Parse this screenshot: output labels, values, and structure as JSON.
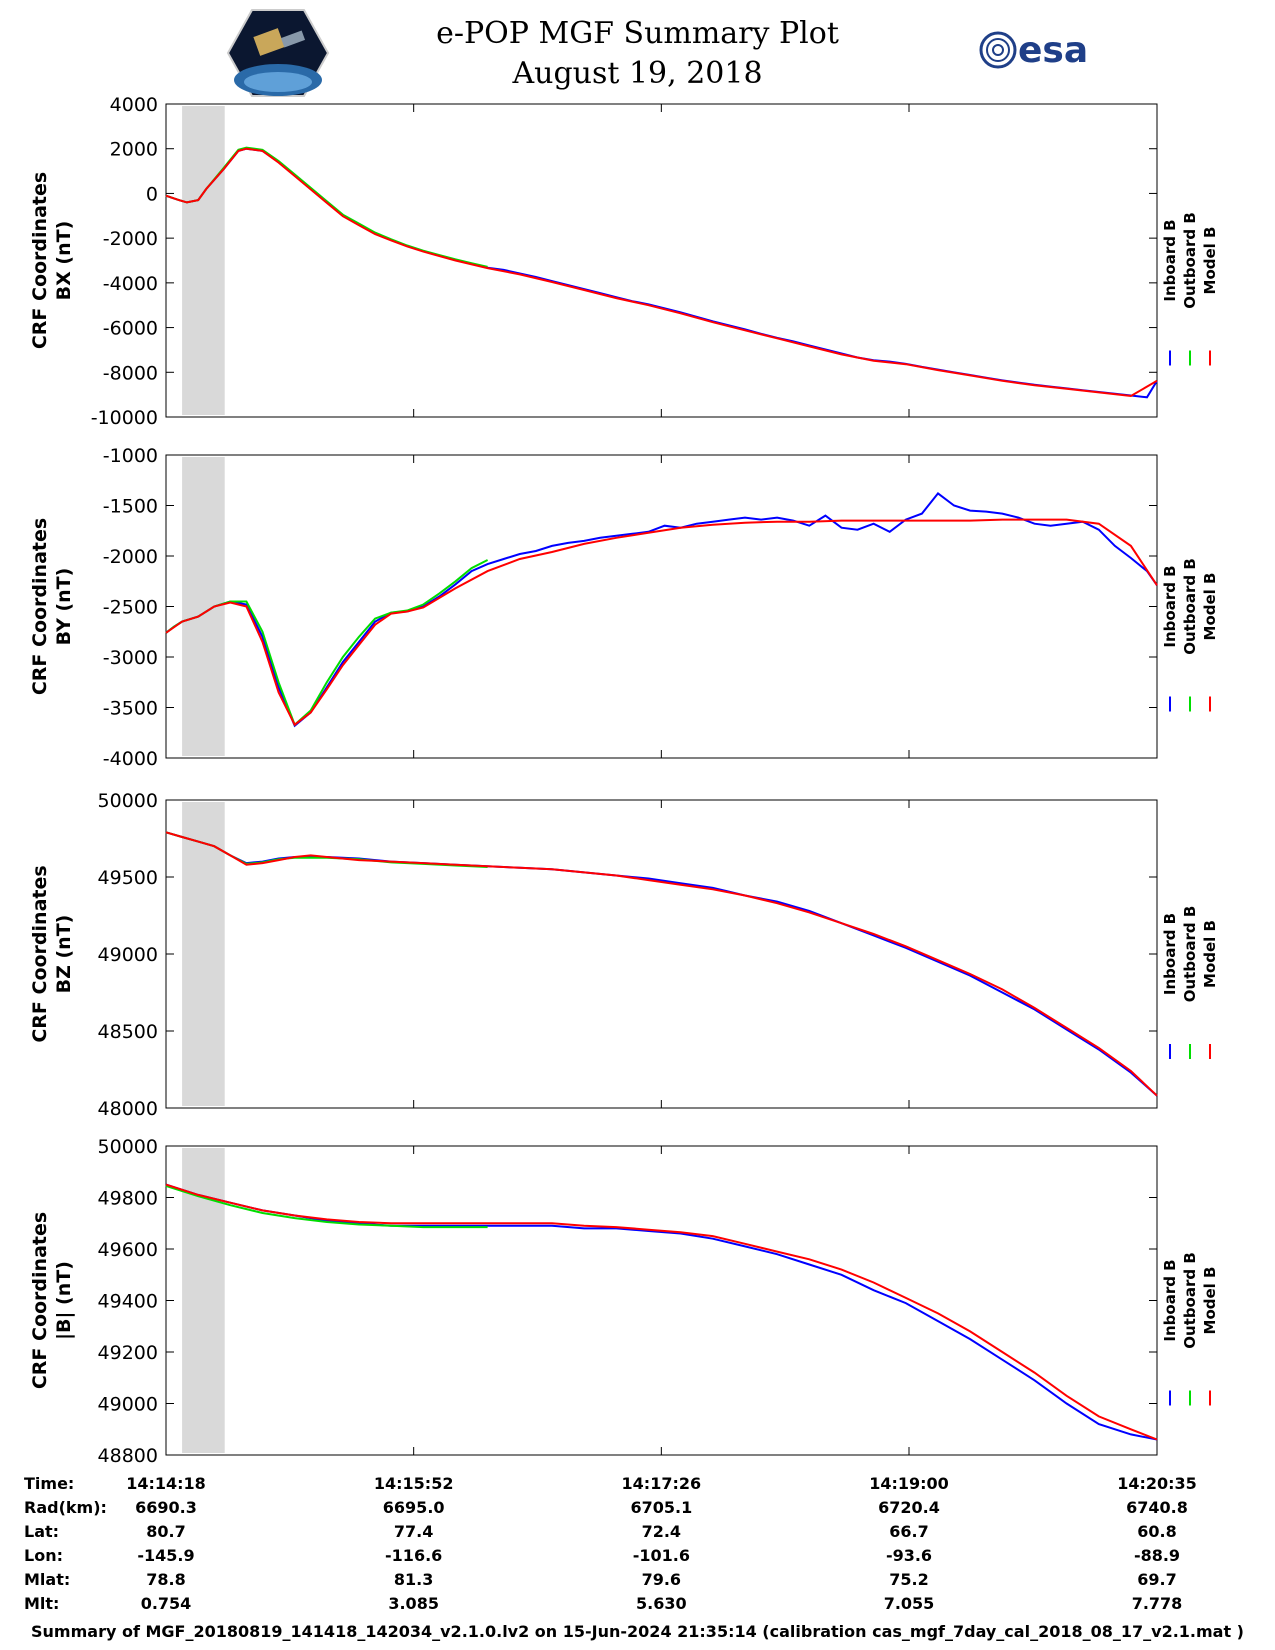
{
  "header": {
    "title": "e-POP MGF Summary Plot",
    "date": "August 19, 2018",
    "left_logo": "cassiope-satellite-logo",
    "right_logo_text": "esa"
  },
  "colors": {
    "inboard": "#0000ff",
    "outboard": "#00dd00",
    "model": "#ff0000",
    "shade": "#d9d9d9"
  },
  "legend": [
    "Inboard B",
    "Outboard B",
    "Model B"
  ],
  "chart_data": [
    {
      "type": "line",
      "ylabel_line1": "CRF Coordinates",
      "ylabel_line2": "BX (nT)",
      "ylim": [
        -10000,
        4000
      ],
      "yticks": [
        -10000,
        -8000,
        -6000,
        -4000,
        -2000,
        0,
        2000,
        4000
      ],
      "shaded_region_minutes": [
        1.0,
        3.65
      ],
      "series": [
        {
          "name": "Inboard B",
          "x": [
            0.0,
            0.4,
            0.8,
            1.3,
            2.0,
            2.5,
            3.6,
            4.5,
            5.0,
            6.0,
            7.0,
            8.0,
            9.0,
            10.0,
            11.0,
            12.0,
            12.5,
            13.0,
            13.5,
            14.0,
            15.0,
            16.0,
            17.0,
            18.0,
            19.0,
            20.0,
            21.0,
            22.0,
            23.0,
            24.0,
            25.0,
            26.0,
            27.0,
            28.0,
            29.0,
            30.0,
            31.0,
            32.0,
            33.0,
            34.0,
            35.0,
            36.0,
            37.0,
            38.0,
            39.0,
            40.0,
            41.0,
            42.0,
            43.0,
            44.0,
            45.0,
            46.0,
            47.0,
            48.0,
            49.0,
            50.0,
            51.0,
            52.0,
            53.0,
            54.0,
            55.0,
            56.0,
            57.0,
            58.0,
            59.0,
            60.0,
            61.0,
            61.62
          ],
          "y": [
            -100,
            -200,
            -300,
            -400,
            -300,
            200,
            1100,
            1900,
            2000,
            1900,
            1400,
            800,
            200,
            -400,
            -1000,
            -1400,
            -1600,
            -1800,
            -1950,
            -2080,
            -2350,
            -2580,
            -2780,
            -2980,
            -3150,
            -3320,
            -3420,
            -3580,
            -3740,
            -3920,
            -4100,
            -4280,
            -4460,
            -4640,
            -4820,
            -4960,
            -5140,
            -5320,
            -5520,
            -5720,
            -5900,
            -6080,
            -6280,
            -6460,
            -6620,
            -6800,
            -6980,
            -7160,
            -7340,
            -7460,
            -7520,
            -7620,
            -7760,
            -7880,
            -8000,
            -8120,
            -8240,
            -8360,
            -8460,
            -8560,
            -8640,
            -8720,
            -8800,
            -8880,
            -8960,
            -9040,
            -9120,
            -8380
          ]
        },
        {
          "name": "Outboard B",
          "x": [
            0.0,
            0.8,
            1.3,
            2.0,
            2.5,
            3.6,
            4.5,
            5.0,
            6.0,
            7.0,
            8.0,
            9.0,
            10.0,
            11.0,
            12.0,
            13.0,
            14.0,
            15.0,
            16.0,
            17.0,
            18.0,
            19.0,
            20.0
          ],
          "y": [
            -100,
            -300,
            -400,
            -300,
            200,
            1150,
            1950,
            2050,
            1950,
            1450,
            850,
            250,
            -350,
            -950,
            -1350,
            -1750,
            -2050,
            -2330,
            -2560,
            -2760,
            -2950,
            -3120,
            -3280
          ]
        },
        {
          "name": "Model B",
          "x": [
            0.0,
            0.8,
            1.3,
            2.0,
            2.5,
            3.6,
            4.5,
            5.0,
            6.0,
            7.0,
            8.0,
            9.0,
            10.0,
            11.0,
            12.0,
            13.0,
            14.0,
            15.0,
            16.0,
            18.0,
            20.0,
            22.0,
            24.0,
            26.0,
            28.0,
            30.0,
            32.0,
            34.0,
            36.0,
            38.0,
            40.0,
            42.0,
            44.0,
            46.0,
            48.0,
            50.0,
            52.0,
            54.0,
            56.0,
            58.0,
            60.0,
            61.62
          ],
          "y": [
            -100,
            -300,
            -400,
            -300,
            200,
            1100,
            1900,
            2000,
            1900,
            1380,
            780,
            180,
            -420,
            -1020,
            -1420,
            -1820,
            -2100,
            -2370,
            -2600,
            -3000,
            -3340,
            -3620,
            -3960,
            -4320,
            -4680,
            -5000,
            -5360,
            -5760,
            -6120,
            -6480,
            -6840,
            -7200,
            -7480,
            -7640,
            -7900,
            -8140,
            -8380,
            -8580,
            -8740,
            -8900,
            -9060,
            -8380
          ]
        }
      ]
    },
    {
      "type": "line",
      "ylabel_line1": "CRF Coordinates",
      "ylabel_line2": "BY (nT)",
      "ylim": [
        -4000,
        -1000
      ],
      "yticks": [
        -4000,
        -3500,
        -3000,
        -2500,
        -2000,
        -1500,
        -1000
      ],
      "shaded_region_minutes": [
        1.0,
        3.65
      ],
      "series": [
        {
          "name": "Inboard B",
          "x": [
            0.0,
            0.5,
            1.0,
            2.0,
            3.0,
            4.0,
            5.0,
            6.0,
            7.0,
            8.0,
            9.0,
            10.0,
            11.0,
            12.0,
            13.0,
            14.0,
            15.0,
            16.0,
            17.0,
            18.0,
            19.0,
            20.0,
            21.0,
            22.0,
            23.0,
            24.0,
            25.0,
            26.0,
            27.0,
            28.0,
            29.0,
            30.0,
            31.0,
            32.0,
            33.0,
            34.0,
            35.0,
            36.0,
            37.0,
            38.0,
            39.0,
            40.0,
            41.0,
            42.0,
            43.0,
            44.0,
            45.0,
            46.0,
            47.0,
            48.0,
            49.0,
            50.0,
            51.0,
            52.0,
            53.0,
            54.0,
            55.0,
            56.0,
            57.0,
            58.0,
            59.0,
            60.0,
            61.0,
            61.62
          ],
          "y": [
            -2760,
            -2700,
            -2650,
            -2600,
            -2500,
            -2450,
            -2480,
            -2800,
            -3300,
            -3680,
            -3550,
            -3300,
            -3050,
            -2850,
            -2650,
            -2560,
            -2550,
            -2500,
            -2400,
            -2280,
            -2150,
            -2080,
            -2030,
            -1980,
            -1950,
            -1900,
            -1870,
            -1850,
            -1820,
            -1800,
            -1780,
            -1760,
            -1700,
            -1720,
            -1680,
            -1660,
            -1640,
            -1620,
            -1640,
            -1620,
            -1650,
            -1700,
            -1600,
            -1720,
            -1740,
            -1680,
            -1760,
            -1640,
            -1580,
            -1380,
            -1500,
            -1550,
            -1560,
            -1580,
            -1620,
            -1680,
            -1700,
            -1680,
            -1660,
            -1740,
            -1900,
            -2020,
            -2150,
            -2290
          ]
        },
        {
          "name": "Outboard B",
          "x": [
            0.0,
            0.5,
            1.0,
            2.0,
            3.0,
            4.0,
            5.0,
            6.0,
            7.0,
            8.0,
            9.0,
            10.0,
            11.0,
            12.0,
            13.0,
            14.0,
            15.0,
            16.0,
            17.0,
            18.0,
            19.0,
            20.0
          ],
          "y": [
            -2760,
            -2700,
            -2650,
            -2600,
            -2500,
            -2450,
            -2450,
            -2750,
            -3250,
            -3670,
            -3530,
            -3250,
            -3000,
            -2800,
            -2620,
            -2560,
            -2540,
            -2480,
            -2370,
            -2250,
            -2120,
            -2040
          ]
        },
        {
          "name": "Model B",
          "x": [
            0.0,
            1.0,
            2.0,
            3.0,
            4.0,
            5.0,
            6.0,
            7.0,
            8.0,
            9.0,
            10.0,
            11.0,
            12.0,
            13.0,
            14.0,
            15.0,
            16.0,
            18.0,
            20.0,
            22.0,
            24.0,
            26.0,
            28.0,
            30.0,
            32.0,
            34.0,
            36.0,
            38.0,
            40.0,
            42.0,
            44.0,
            46.0,
            48.0,
            50.0,
            52.0,
            54.0,
            56.0,
            58.0,
            60.0,
            61.62
          ],
          "y": [
            -2760,
            -2650,
            -2600,
            -2500,
            -2460,
            -2500,
            -2850,
            -3350,
            -3670,
            -3550,
            -3320,
            -3080,
            -2880,
            -2680,
            -2570,
            -2550,
            -2510,
            -2320,
            -2150,
            -2030,
            -1960,
            -1880,
            -1820,
            -1770,
            -1720,
            -1690,
            -1670,
            -1660,
            -1660,
            -1650,
            -1650,
            -1650,
            -1650,
            -1650,
            -1640,
            -1640,
            -1640,
            -1680,
            -1900,
            -2290
          ]
        }
      ]
    },
    {
      "type": "line",
      "ylabel_line1": "CRF Coordinates",
      "ylabel_line2": "BZ (nT)",
      "ylim": [
        48000,
        50000
      ],
      "yticks": [
        48000,
        48500,
        49000,
        49500,
        50000
      ],
      "shaded_region_minutes": [
        1.0,
        3.65
      ],
      "series": [
        {
          "name": "Inboard B",
          "x": [
            0.0,
            1.0,
            2.0,
            3.0,
            4.0,
            5.0,
            6.0,
            7.0,
            8.0,
            9.0,
            10.0,
            12.0,
            14.0,
            16.0,
            18.0,
            20.0,
            22.0,
            24.0,
            26.0,
            28.0,
            30.0,
            32.0,
            34.0,
            36.0,
            38.0,
            40.0,
            42.0,
            44.0,
            46.0,
            48.0,
            50.0,
            52.0,
            54.0,
            56.0,
            58.0,
            60.0,
            61.62
          ],
          "y": [
            49790,
            49760,
            49730,
            49700,
            49640,
            49590,
            49600,
            49620,
            49630,
            49630,
            49630,
            49620,
            49600,
            49590,
            49580,
            49570,
            49560,
            49550,
            49530,
            49510,
            49490,
            49460,
            49430,
            49380,
            49340,
            49280,
            49200,
            49120,
            49040,
            48950,
            48860,
            48750,
            48640,
            48510,
            48380,
            48230,
            48080
          ]
        },
        {
          "name": "Outboard B",
          "x": [
            0.0,
            1.0,
            2.0,
            3.0,
            4.0,
            5.0,
            6.0,
            7.0,
            8.0,
            9.0,
            10.0,
            12.0,
            14.0,
            16.0,
            18.0,
            20.0
          ],
          "y": [
            49790,
            49760,
            49730,
            49700,
            49640,
            49585,
            49595,
            49615,
            49625,
            49625,
            49625,
            49615,
            49595,
            49585,
            49575,
            49565
          ]
        },
        {
          "name": "Model B",
          "x": [
            0.0,
            1.0,
            2.0,
            3.0,
            4.0,
            5.0,
            6.0,
            7.0,
            8.0,
            9.0,
            10.0,
            12.0,
            14.0,
            16.0,
            18.0,
            20.0,
            22.0,
            24.0,
            26.0,
            28.0,
            30.0,
            32.0,
            34.0,
            36.0,
            38.0,
            40.0,
            42.0,
            44.0,
            46.0,
            48.0,
            50.0,
            52.0,
            54.0,
            56.0,
            58.0,
            60.0,
            61.62
          ],
          "y": [
            49790,
            49760,
            49730,
            49700,
            49640,
            49580,
            49590,
            49610,
            49630,
            49640,
            49630,
            49610,
            49600,
            49590,
            49580,
            49570,
            49560,
            49550,
            49530,
            49510,
            49480,
            49450,
            49420,
            49380,
            49330,
            49270,
            49200,
            49130,
            49050,
            48960,
            48870,
            48770,
            48650,
            48520,
            48390,
            48240,
            48080
          ]
        }
      ]
    },
    {
      "type": "line",
      "ylabel_line1": "CRF Coordinates",
      "ylabel_line2": "|B| (nT)",
      "ylim": [
        48800,
        50000
      ],
      "yticks": [
        48800,
        49000,
        49200,
        49400,
        49600,
        49800,
        50000
      ],
      "shaded_region_minutes": [
        1.0,
        3.65
      ],
      "series": [
        {
          "name": "Inboard B",
          "x": [
            0.0,
            2.0,
            4.0,
            6.0,
            8.0,
            10.0,
            12.0,
            14.0,
            16.0,
            18.0,
            20.0,
            22.0,
            24.0,
            26.0,
            28.0,
            30.0,
            32.0,
            34.0,
            36.0,
            38.0,
            40.0,
            42.0,
            44.0,
            46.0,
            48.0,
            50.0,
            52.0,
            54.0,
            56.0,
            58.0,
            60.0,
            61.62
          ],
          "y": [
            49850,
            49810,
            49780,
            49750,
            49730,
            49710,
            49700,
            49690,
            49690,
            49690,
            49690,
            49690,
            49690,
            49680,
            49680,
            49670,
            49660,
            49640,
            49610,
            49580,
            49540,
            49500,
            49440,
            49390,
            49320,
            49250,
            49170,
            49090,
            49000,
            48920,
            48880,
            48860
          ]
        },
        {
          "name": "Outboard B",
          "x": [
            0.0,
            2.0,
            4.0,
            6.0,
            8.0,
            10.0,
            12.0,
            14.0,
            16.0,
            18.0,
            20.0
          ],
          "y": [
            49845,
            49805,
            49770,
            49740,
            49720,
            49705,
            49695,
            49690,
            49685,
            49685,
            49685
          ]
        },
        {
          "name": "Model B",
          "x": [
            0.0,
            2.0,
            4.0,
            6.0,
            8.0,
            10.0,
            12.0,
            14.0,
            16.0,
            18.0,
            20.0,
            22.0,
            24.0,
            26.0,
            28.0,
            30.0,
            32.0,
            34.0,
            36.0,
            38.0,
            40.0,
            42.0,
            44.0,
            46.0,
            48.0,
            50.0,
            52.0,
            54.0,
            56.0,
            58.0,
            60.0,
            61.62
          ],
          "y": [
            49850,
            49810,
            49780,
            49750,
            49730,
            49715,
            49705,
            49700,
            49700,
            49700,
            49700,
            49700,
            49700,
            49690,
            49685,
            49675,
            49665,
            49650,
            49620,
            49590,
            49560,
            49520,
            49470,
            49410,
            49350,
            49280,
            49200,
            49120,
            49030,
            48950,
            48900,
            48860
          ]
        }
      ]
    }
  ],
  "x_axis": {
    "tick_minutes": [
      0,
      15.4,
      30.8,
      46.2,
      61.62
    ],
    "minutes_range": [
      0,
      61.62
    ]
  },
  "info_table": {
    "labels": [
      "Time:",
      "Rad(km):",
      "Lat:",
      "Lon:",
      "Mlat:",
      "Mlt:"
    ],
    "columns": [
      [
        "14:14:18",
        "6690.3",
        "80.7",
        "-145.9",
        "78.8",
        "0.754"
      ],
      [
        "14:15:52",
        "6695.0",
        "77.4",
        "-116.6",
        "81.3",
        "3.085"
      ],
      [
        "14:17:26",
        "6705.1",
        "72.4",
        "-101.6",
        "79.6",
        "5.630"
      ],
      [
        "14:19:00",
        "6720.4",
        "66.7",
        "-93.6",
        "75.2",
        "7.055"
      ],
      [
        "14:20:35",
        "6740.8",
        "60.8",
        "-88.9",
        "69.7",
        "7.778"
      ]
    ]
  },
  "footer": "Summary of MGF_20180819_141418_142034_v2.1.0.lv2 on 15-Jun-2024 21:35:14 (calibration cas_mgf_7day_cal_2018_08_17_v2.1.mat )"
}
